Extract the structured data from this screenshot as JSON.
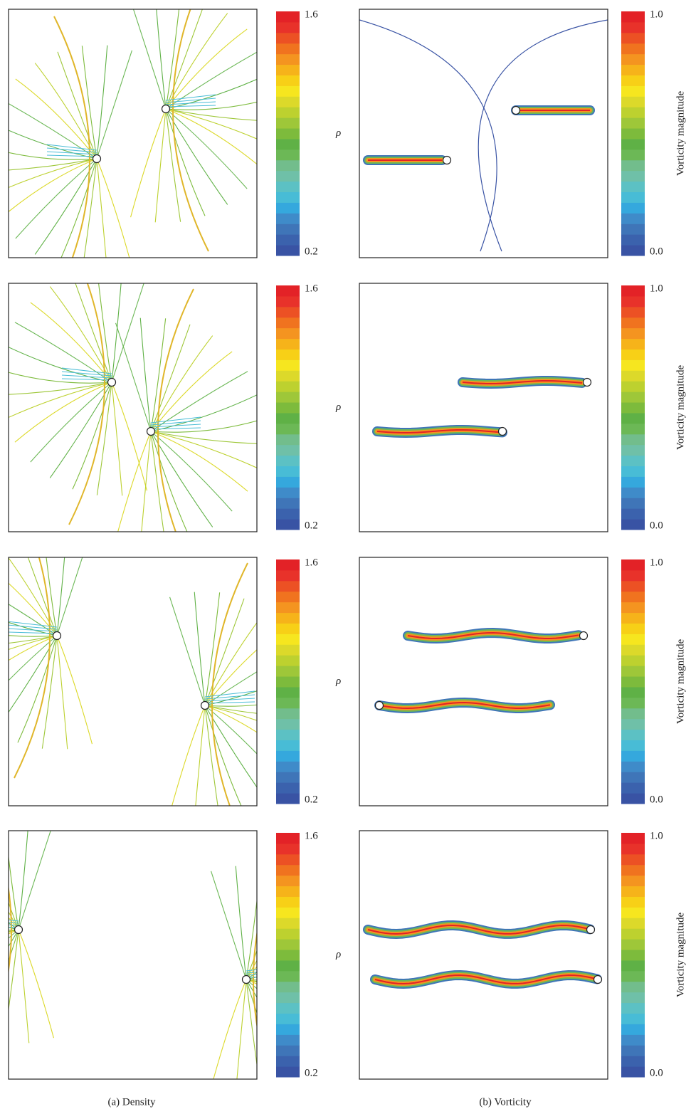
{
  "rows": [
    {
      "density_colorbar": {
        "max": "1.6",
        "min": "0.2",
        "label": "ρ"
      },
      "vorticity_colorbar": {
        "max": "1.0",
        "min": "0.0",
        "label": "Vorticity magnitude"
      }
    },
    {
      "density_colorbar": {
        "max": "1.6",
        "min": "0.2",
        "label": "ρ"
      },
      "vorticity_colorbar": {
        "max": "1.0",
        "min": "0.0",
        "label": "Vorticity magnitude"
      }
    },
    {
      "density_colorbar": {
        "max": "1.6",
        "min": "0.2",
        "label": "ρ"
      },
      "vorticity_colorbar": {
        "max": "1.0",
        "min": "0.0",
        "label": "Vorticity magnitude"
      }
    },
    {
      "density_colorbar": {
        "max": "1.6",
        "min": "0.2",
        "label": "ρ"
      },
      "vorticity_colorbar": {
        "max": "1.0",
        "min": "0.0",
        "label": "Vorticity magnitude"
      }
    }
  ],
  "captions": [
    "(a) Density",
    "(b) Vorticity"
  ]
}
